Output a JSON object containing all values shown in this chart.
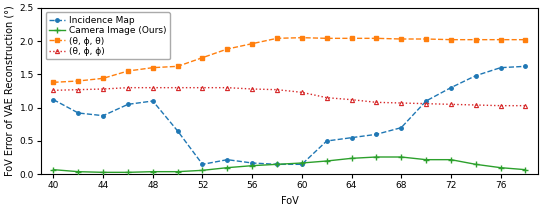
{
  "fov": [
    40,
    42,
    44,
    46,
    48,
    50,
    52,
    54,
    56,
    58,
    60,
    62,
    64,
    66,
    68,
    70,
    72,
    74,
    76,
    78
  ],
  "incidence_map": [
    1.12,
    0.92,
    0.88,
    1.05,
    1.1,
    0.65,
    0.15,
    0.22,
    0.17,
    0.15,
    0.15,
    0.5,
    0.55,
    0.6,
    0.7,
    1.1,
    1.3,
    1.48,
    1.6,
    1.62
  ],
  "camera_image": [
    0.07,
    0.04,
    0.03,
    0.03,
    0.04,
    0.04,
    0.06,
    0.1,
    0.13,
    0.15,
    0.17,
    0.2,
    0.24,
    0.26,
    0.26,
    0.22,
    0.22,
    0.15,
    0.1,
    0.07
  ],
  "theta_phi_theta": [
    1.38,
    1.4,
    1.44,
    1.55,
    1.6,
    1.62,
    1.75,
    1.88,
    1.96,
    2.04,
    2.05,
    2.04,
    2.04,
    2.04,
    2.03,
    2.03,
    2.02,
    2.02,
    2.02,
    2.02
  ],
  "theta_phi_phi": [
    1.26,
    1.27,
    1.28,
    1.3,
    1.3,
    1.3,
    1.3,
    1.3,
    1.28,
    1.27,
    1.23,
    1.15,
    1.12,
    1.08,
    1.07,
    1.06,
    1.05,
    1.04,
    1.03,
    1.03
  ],
  "incidence_color": "#1f77b4",
  "camera_color": "#2ca02c",
  "theta_phi_theta_color": "#ff7f0e",
  "theta_phi_phi_color": "#d62728",
  "xlabel": "FoV",
  "ylabel": "FoV Error of VAE Reconstruction (°)",
  "ylim": [
    0,
    2.5
  ],
  "yticks": [
    0.0,
    0.5,
    1.0,
    1.5,
    2.0,
    2.5
  ],
  "xticks": [
    40,
    44,
    48,
    52,
    56,
    60,
    64,
    68,
    72,
    76
  ],
  "legend_labels": [
    "Incidence Map",
    "Camera Image (Ours)",
    "(θ, ϕ, θ)",
    "(θ, ϕ, ϕ)"
  ],
  "axis_fontsize": 7,
  "tick_fontsize": 6.5,
  "legend_fontsize": 6.5
}
